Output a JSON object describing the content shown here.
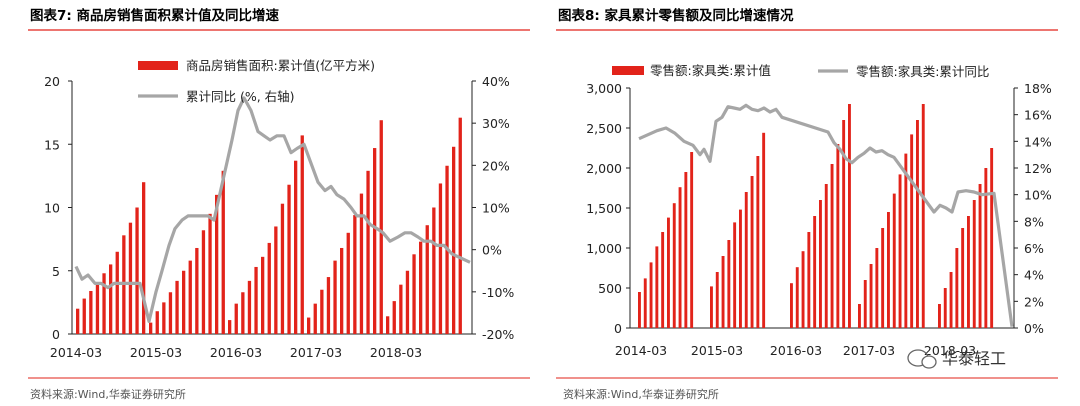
{
  "chart_data": [
    {
      "type": "bar+line",
      "title": "图表7:   商品房销售面积累计值及同比增速",
      "source": "资料来源:Wind,华泰证券研究所",
      "legend": {
        "bar": "商品房销售面积:累计值(亿平方米)",
        "line": "累计同比 (%, 右轴)",
        "placement": "top-center"
      },
      "x_tick_labels": [
        "2014-03",
        "2015-03",
        "2016-03",
        "2017-03",
        "2018-03"
      ],
      "y_left": {
        "range": [
          0,
          20
        ],
        "ticks": [
          "0",
          "5",
          "10",
          "15",
          "20"
        ]
      },
      "y_right": {
        "range": [
          -20,
          40
        ],
        "ticks": [
          "-20%",
          "-10%",
          "0%",
          "10%",
          "20%",
          "30%",
          "40%"
        ]
      },
      "bar_color": "#e2231a",
      "line_color": "#a6a6a6",
      "bars": [
        2.0,
        2.8,
        3.4,
        4.0,
        4.8,
        5.5,
        6.5,
        7.8,
        8.8,
        10.0,
        12.0,
        0.9,
        1.8,
        2.5,
        3.3,
        4.2,
        5.0,
        5.8,
        6.8,
        8.2,
        9.5,
        11.0,
        12.9,
        1.1,
        2.4,
        3.3,
        4.2,
        5.3,
        6.1,
        7.2,
        8.5,
        10.3,
        11.8,
        13.7,
        15.7,
        1.3,
        2.4,
        3.5,
        4.5,
        5.8,
        6.8,
        8.0,
        9.4,
        11.1,
        12.9,
        14.7,
        16.9,
        1.4,
        2.6,
        3.9,
        5.0,
        6.3,
        7.3,
        8.6,
        10.0,
        11.9,
        13.3,
        14.8,
        17.1
      ]
    },
    {
      "type": "bar+line",
      "title": "图表8:   家具累计零售额及同比增速情况",
      "source": "资料来源:Wind,华泰证券研究所",
      "legend": {
        "bar": "零售额:家具类:累计值",
        "line": "零售额:家具类:累计同比",
        "placement": "top-center"
      },
      "x_tick_labels": [
        "2014-03",
        "2015-03",
        "2016-03",
        "2017-03",
        "2018-03"
      ],
      "y_left": {
        "range": [
          0,
          3000
        ],
        "ticks": [
          "0",
          "500",
          "1,000",
          "1,500",
          "2,000",
          "2,500",
          "3,000"
        ]
      },
      "y_right": {
        "range": [
          0,
          18
        ],
        "ticks": [
          "0%",
          "2%",
          "4%",
          "6%",
          "8%",
          "10%",
          "12%",
          "14%",
          "16%",
          "18%"
        ]
      },
      "bar_color": "#e2231a",
      "line_color": "#a6a6a6",
      "watermark": "华泰轻工"
    }
  ]
}
